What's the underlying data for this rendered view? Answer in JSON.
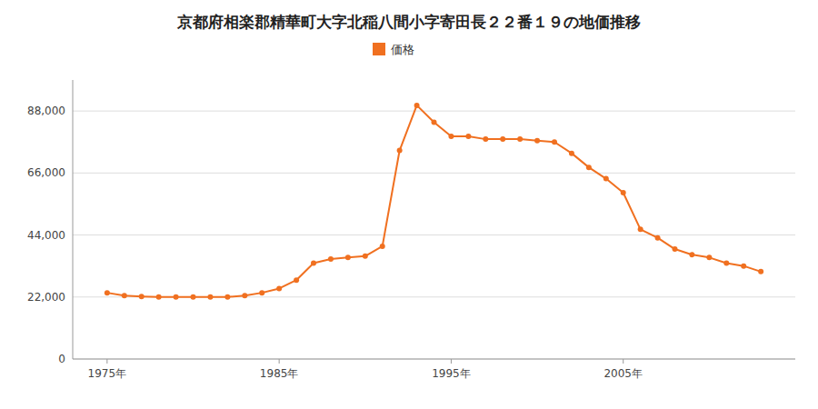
{
  "chart_data": {
    "type": "line",
    "title": "京都府相楽郡精華町大字北稲八間小字寄田長２２番１９の地価推移",
    "x": [
      1975,
      1976,
      1977,
      1978,
      1979,
      1980,
      1981,
      1982,
      1983,
      1984,
      1985,
      1986,
      1987,
      1988,
      1989,
      1990,
      1991,
      1992,
      1993,
      1994,
      1995,
      1996,
      1997,
      1998,
      1999,
      2000,
      2001,
      2002,
      2003,
      2004,
      2005,
      2006,
      2007,
      2008,
      2009,
      2010,
      2011,
      2012,
      2013
    ],
    "series": [
      {
        "name": "価格",
        "color": "#f07020",
        "marker": "circle",
        "values": [
          23500,
          22500,
          22200,
          22000,
          22000,
          22000,
          22000,
          22000,
          22500,
          23500,
          25000,
          28000,
          34000,
          35500,
          36000,
          36500,
          40000,
          74000,
          90000,
          84000,
          79000,
          79000,
          78000,
          78000,
          78000,
          77500,
          77000,
          73000,
          68000,
          64000,
          59000,
          46000,
          43000,
          39000,
          37000,
          36000,
          34000,
          33000,
          31000
        ]
      }
    ],
    "xlim": [
      1973,
      2015
    ],
    "xticks": [
      {
        "value": 1975,
        "label": "1975年"
      },
      {
        "value": 1985,
        "label": "1985年"
      },
      {
        "value": 1995,
        "label": "1995年"
      },
      {
        "value": 2005,
        "label": "2005年"
      }
    ],
    "ylim": [
      0,
      99000
    ],
    "yticks": [
      0,
      {
        "value": 22000,
        "label": "22,000"
      },
      {
        "value": 44000,
        "label": "44,000"
      },
      {
        "value": 66000,
        "label": "66,000"
      },
      {
        "value": 88000,
        "label": "88,000"
      }
    ],
    "grid": true,
    "legend": "top"
  }
}
